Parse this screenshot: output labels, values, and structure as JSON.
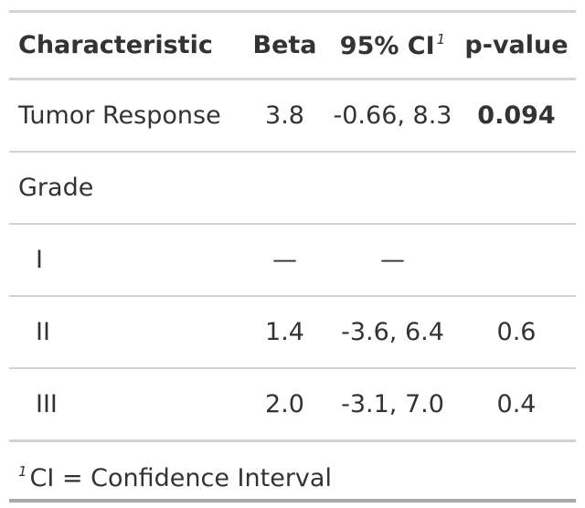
{
  "table": {
    "headers": {
      "characteristic": "Characteristic",
      "beta": "Beta",
      "ci": "95% CI",
      "ci_footnote_mark": "1",
      "pvalue": "p-value"
    },
    "rows": [
      {
        "label": "Tumor Response",
        "beta": "3.8",
        "ci": "-0.66, 8.3",
        "pvalue": "0.094",
        "pvalue_bold": true
      },
      {
        "label": "Grade",
        "beta": "",
        "ci": "",
        "pvalue": ""
      },
      {
        "label": "I",
        "beta": "—",
        "ci": "—",
        "pvalue": ""
      },
      {
        "label": "II",
        "beta": "1.4",
        "ci": "-3.6, 6.4",
        "pvalue": "0.6"
      },
      {
        "label": "III",
        "beta": "2.0",
        "ci": "-3.1, 7.0",
        "pvalue": "0.4"
      }
    ]
  },
  "footnote": {
    "mark": "1",
    "text": "CI = Confidence Interval"
  }
}
